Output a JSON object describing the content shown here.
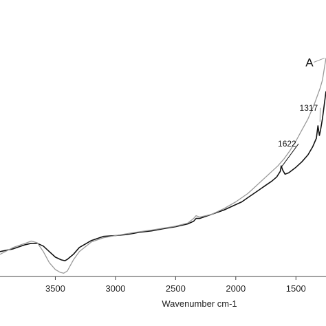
{
  "chart_data": {
    "type": "line",
    "title": "",
    "xlabel": "Wavenumber cm-1",
    "ylabel": "",
    "xlim": [
      3960,
      1250
    ],
    "ylim": [
      0,
      1
    ],
    "x_reversed": true,
    "grid": false,
    "x_ticks": [
      3500,
      3000,
      2500,
      2000,
      1500
    ],
    "x_tick_labels": [
      "3500",
      "3000",
      "2500",
      "2000",
      "1500"
    ],
    "annotations": [
      {
        "text": "A",
        "x": 1420,
        "y": 0.76,
        "target_x": 1262,
        "target_y": 0.79,
        "color": "#999999"
      },
      {
        "text": "1317",
        "x": 1470,
        "y": 0.6,
        "target_x": 1300,
        "target_y": 0.56,
        "color": "#999999"
      },
      {
        "text": "1622",
        "x": 1650,
        "y": 0.47,
        "target_x": 1622,
        "target_y": 0.395,
        "color": "#111111"
      }
    ],
    "series": [
      {
        "color": "#111111",
        "x": [
          3960,
          3850,
          3750,
          3700,
          3650,
          3600,
          3550,
          3500,
          3450,
          3420,
          3400,
          3350,
          3300,
          3200,
          3100,
          3000,
          2900,
          2800,
          2700,
          2600,
          2500,
          2400,
          2350,
          2330,
          2300,
          2200,
          2100,
          2000,
          1950,
          1900,
          1850,
          1800,
          1750,
          1700,
          1660,
          1630,
          1622,
          1610,
          1590,
          1560,
          1500,
          1450,
          1400,
          1360,
          1330,
          1317,
          1305,
          1295,
          1280,
          1265,
          1250
        ],
        "y": [
          0.09,
          0.1,
          0.115,
          0.12,
          0.12,
          0.11,
          0.09,
          0.07,
          0.06,
          0.057,
          0.062,
          0.08,
          0.105,
          0.13,
          0.145,
          0.148,
          0.152,
          0.16,
          0.165,
          0.173,
          0.18,
          0.19,
          0.2,
          0.21,
          0.21,
          0.225,
          0.24,
          0.26,
          0.27,
          0.285,
          0.3,
          0.315,
          0.33,
          0.345,
          0.36,
          0.38,
          0.4,
          0.385,
          0.37,
          0.375,
          0.395,
          0.415,
          0.44,
          0.47,
          0.5,
          0.545,
          0.51,
          0.53,
          0.57,
          0.62,
          0.67
        ]
      },
      {
        "color": "#999999",
        "x": [
          3960,
          3850,
          3750,
          3700,
          3650,
          3600,
          3550,
          3500,
          3460,
          3430,
          3400,
          3350,
          3300,
          3200,
          3100,
          3000,
          2900,
          2800,
          2700,
          2600,
          2500,
          2400,
          2350,
          2330,
          2300,
          2200,
          2100,
          2000,
          1950,
          1900,
          1850,
          1800,
          1750,
          1700,
          1650,
          1600,
          1550,
          1500,
          1450,
          1400,
          1350,
          1300,
          1280,
          1265,
          1250
        ],
        "y": [
          0.08,
          0.105,
          0.12,
          0.128,
          0.122,
          0.09,
          0.05,
          0.025,
          0.015,
          0.012,
          0.02,
          0.06,
          0.09,
          0.125,
          0.14,
          0.148,
          0.155,
          0.162,
          0.168,
          0.175,
          0.182,
          0.193,
          0.21,
          0.22,
          0.215,
          0.225,
          0.245,
          0.27,
          0.285,
          0.3,
          0.32,
          0.34,
          0.36,
          0.38,
          0.4,
          0.425,
          0.455,
          0.49,
          0.53,
          0.57,
          0.62,
          0.68,
          0.71,
          0.75,
          0.79
        ]
      }
    ]
  }
}
